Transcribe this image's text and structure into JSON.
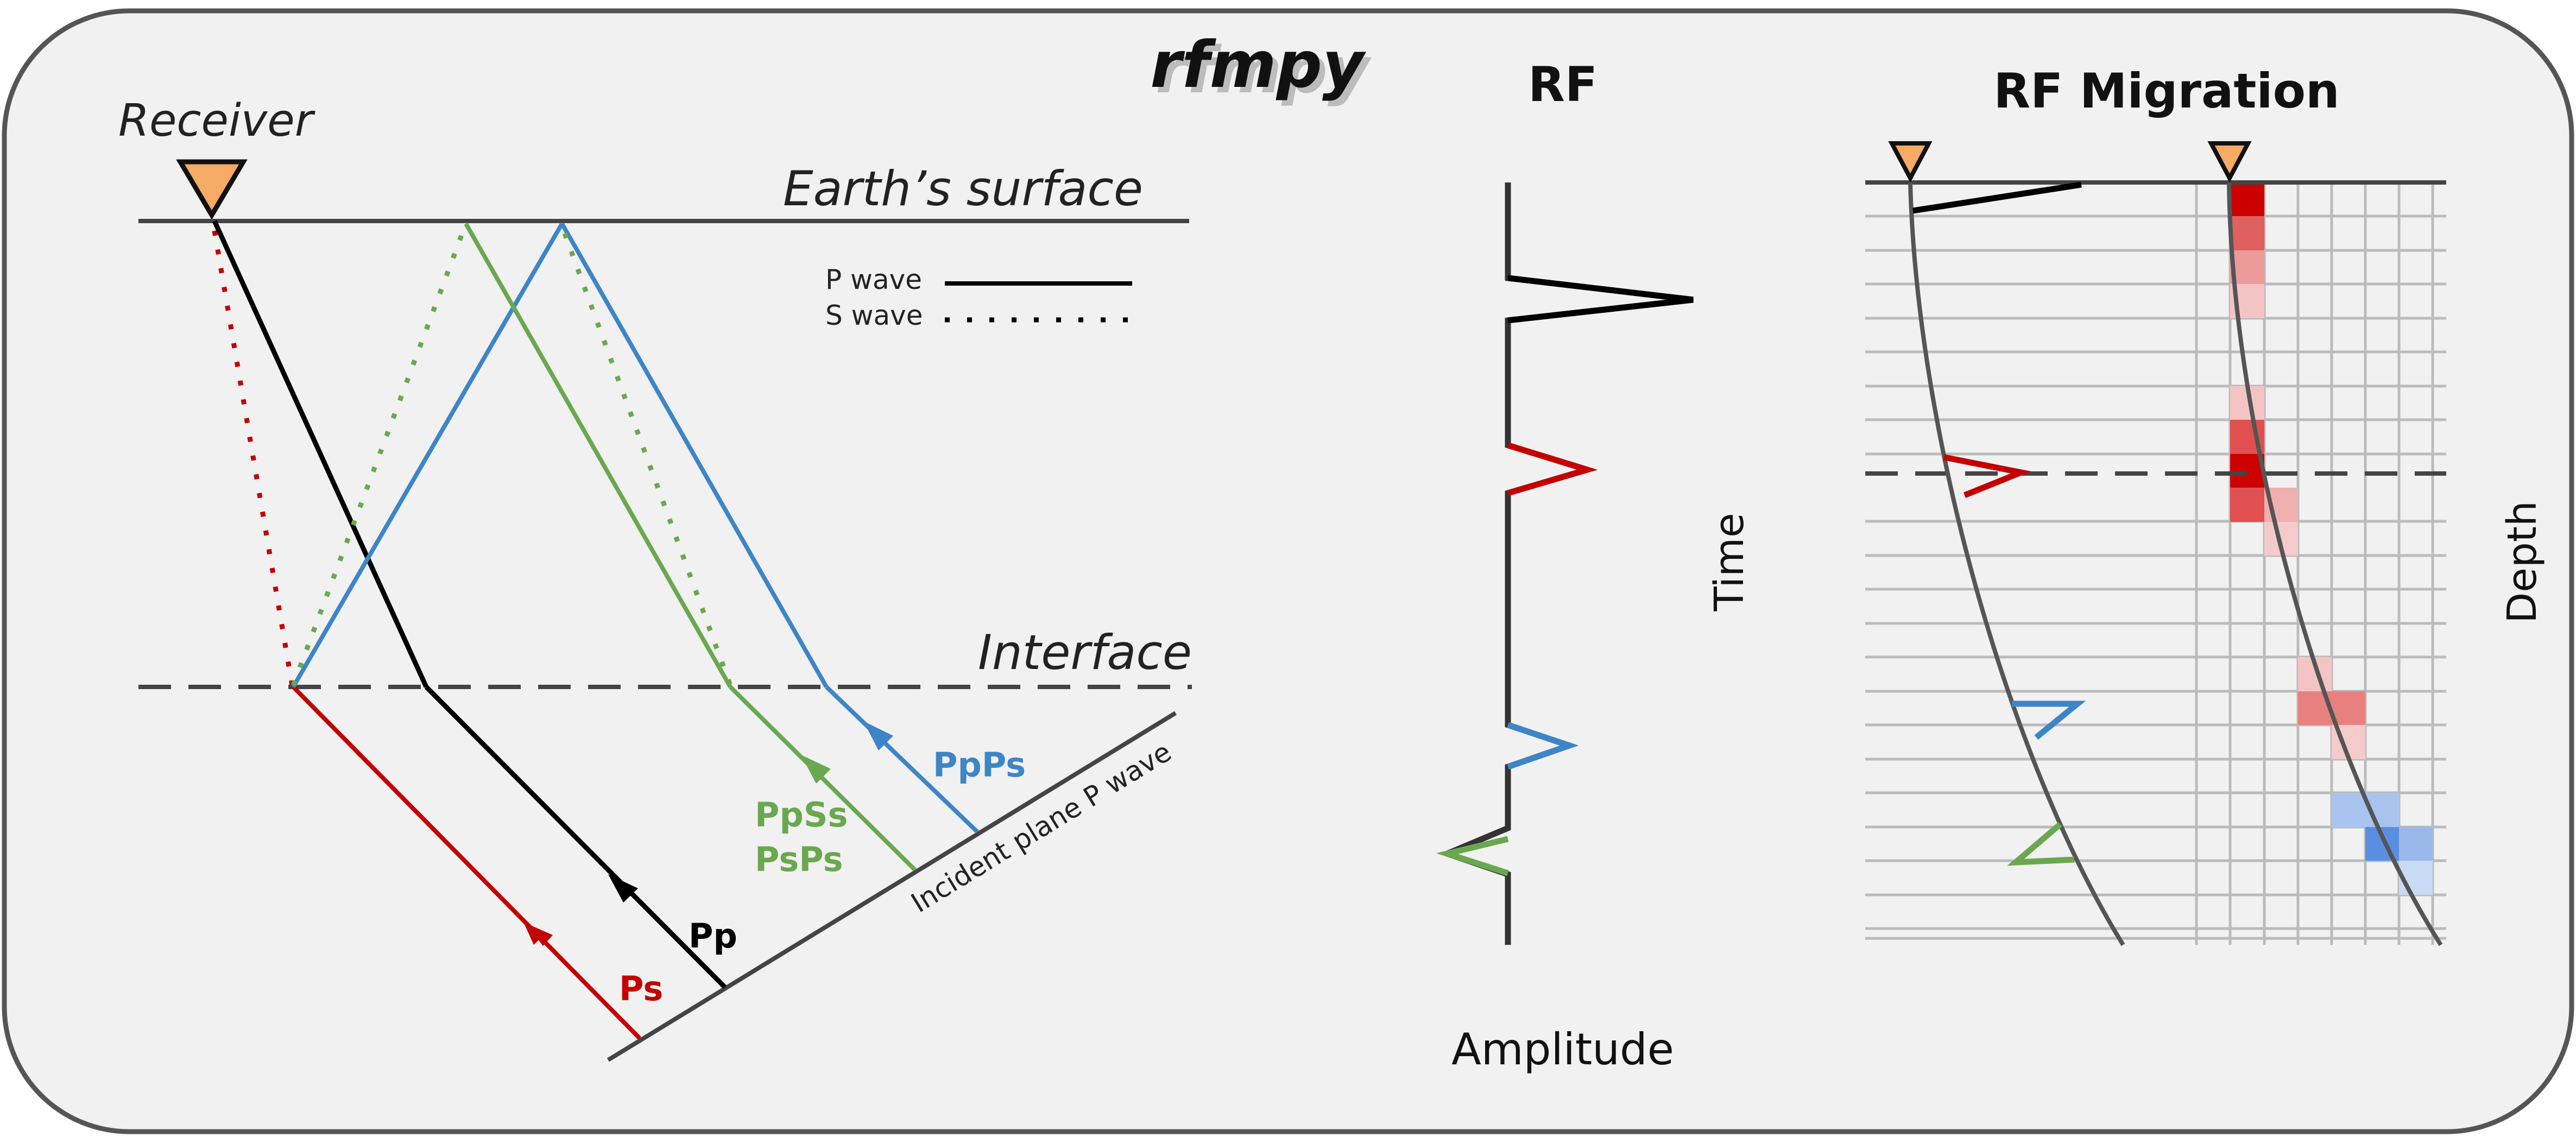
{
  "logo": {
    "text": "rfmpy"
  },
  "left_panel": {
    "receiver_label": "Receiver",
    "surface_label": "Earth’s surface",
    "interface_label": "Interface",
    "incident_label": "Incident plane P wave",
    "legend": {
      "p_wave": "P wave",
      "s_wave": "S wave"
    },
    "phases": {
      "ps": "Ps",
      "pp": "Pp",
      "ppss": "PpSs",
      "psps": "PsPs",
      "ppps": "PpPs"
    }
  },
  "middle_panel": {
    "title": "RF",
    "time_label": "Time",
    "amplitude_label": "Amplitude"
  },
  "right_panel": {
    "title": "RF Migration",
    "depth_label": "Depth"
  },
  "colors": {
    "background": "#f1f1f1",
    "frame": "#555555",
    "receiver": "#f5aa66",
    "ps_red": "#c40000",
    "p_black": "#000000",
    "ppss_green": "#6aa84f",
    "ppps_blue": "#3d85c6",
    "grid": "#bbbbbb"
  }
}
